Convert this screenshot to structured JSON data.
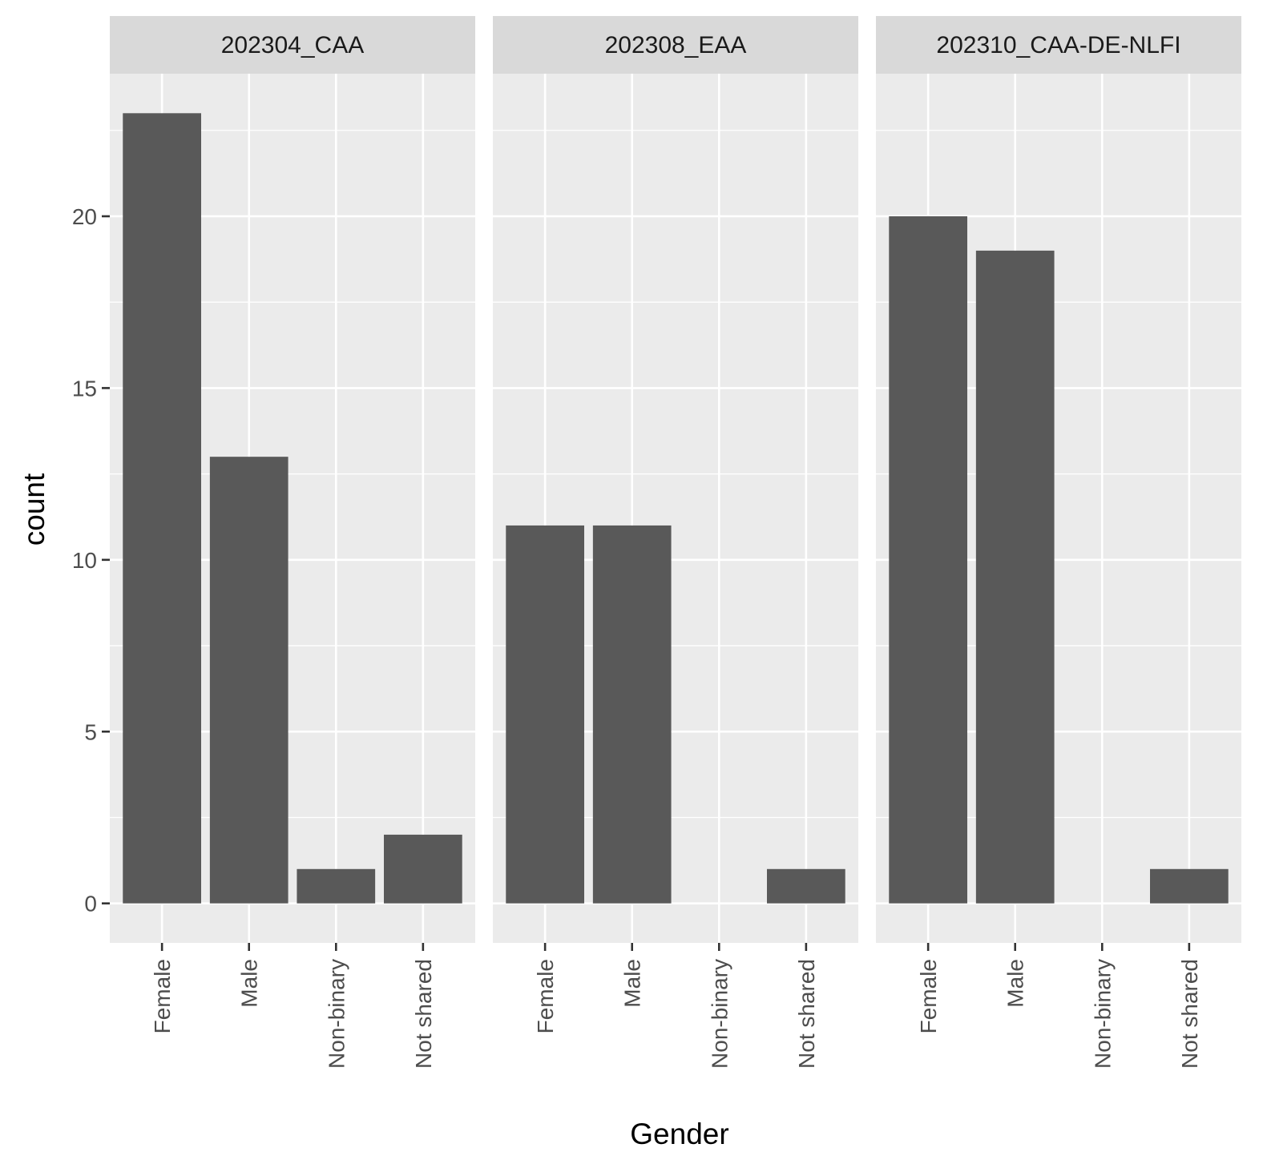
{
  "chart_data": {
    "type": "bar",
    "xlabel": "Gender",
    "ylabel": "count",
    "categories": [
      "Female",
      "Male",
      "Non-binary",
      "Not shared"
    ],
    "y_ticks": [
      0,
      5,
      10,
      15,
      20
    ],
    "ylim": [
      -1.15,
      24.15
    ],
    "grid": true,
    "bar_color": "#595959",
    "panel_background": "#ebebeb",
    "strip_background": "#d9d9d9",
    "grid_color": "#ffffff",
    "panels": [
      {
        "title": "202304_CAA",
        "values": [
          23,
          13,
          1,
          2
        ]
      },
      {
        "title": "202308_EAA",
        "values": [
          11,
          11,
          0,
          1
        ]
      },
      {
        "title": "202310_CAA-DE-NLFI",
        "values": [
          20,
          19,
          0,
          1
        ]
      }
    ]
  }
}
